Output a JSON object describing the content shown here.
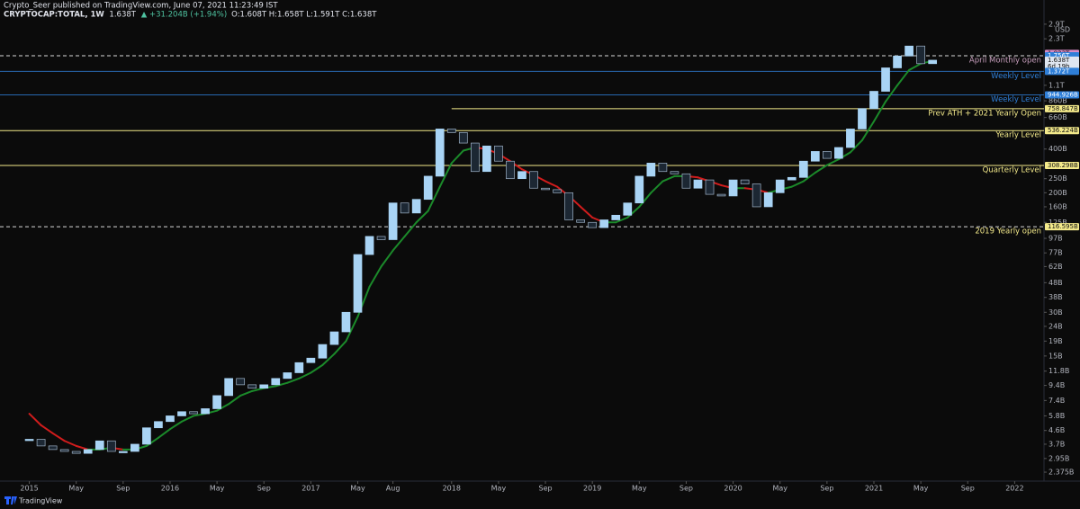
{
  "header": {
    "publisher": "Crypto_Seer published on TradingView.com, June 07, 2021 11:23:49 IST",
    "symbol": "CRYPTOCAP:TOTAL, 1W",
    "last": "1.638T",
    "change": "▲ +31.204B (+1.94%)",
    "ohlc": "O:1.608T H:1.658T L:1.591T C:1.638T",
    "currency": "USD",
    "brand": "TradingView"
  },
  "chart_data": {
    "type": "candlestick",
    "log_scale": true,
    "grid": false,
    "up_color": "#a9d4f5",
    "down_color": "#1c2733",
    "rise_color": "#1b8a2a",
    "fall_color": "#d01c1c",
    "xlim": [
      "2014-11",
      "2022-04"
    ],
    "ylim": [
      2060000000.0,
      3110000000000.0
    ],
    "x": [
      "2015-01",
      "2015-02",
      "2015-03",
      "2015-04",
      "2015-05",
      "2015-06",
      "2015-07",
      "2015-08",
      "2015-09",
      "2015-10",
      "2015-11",
      "2015-12",
      "2016-01",
      "2016-02",
      "2016-03",
      "2016-04",
      "2016-05",
      "2016-06",
      "2016-07",
      "2016-08",
      "2016-09",
      "2016-10",
      "2016-11",
      "2016-12",
      "2017-01",
      "2017-02",
      "2017-03",
      "2017-04",
      "2017-05",
      "2017-06",
      "2017-07",
      "2017-08",
      "2017-09",
      "2017-10",
      "2017-11",
      "2017-12",
      "2018-01",
      "2018-02",
      "2018-03",
      "2018-04",
      "2018-05",
      "2018-06",
      "2018-07",
      "2018-08",
      "2018-09",
      "2018-10",
      "2018-11",
      "2018-12",
      "2019-01",
      "2019-02",
      "2019-03",
      "2019-04",
      "2019-05",
      "2019-06",
      "2019-07",
      "2019-08",
      "2019-09",
      "2019-10",
      "2019-11",
      "2019-12",
      "2020-01",
      "2020-02",
      "2020-03",
      "2020-04",
      "2020-05",
      "2020-06",
      "2020-07",
      "2020-08",
      "2020-09",
      "2020-10",
      "2020-11",
      "2020-12",
      "2021-01",
      "2021-02",
      "2021-03",
      "2021-04",
      "2021-05",
      "2021-06"
    ],
    "close": [
      4000000000.0,
      3600000000.0,
      3400000000.0,
      3300000000.0,
      3200000000.0,
      3400000000.0,
      3900000000.0,
      3300000000.0,
      3300000000.0,
      3700000000.0,
      4800000000.0,
      5300000000.0,
      5800000000.0,
      6200000000.0,
      6000000000.0,
      6500000000.0,
      8000000000.0,
      10500000000.0,
      9500000000.0,
      9000000000.0,
      9500000000.0,
      10500000000.0,
      11500000000.0,
      13500000000.0,
      14500000000.0,
      18000000000.0,
      22000000000.0,
      30000000000.0,
      75000000000.0,
      100000000000.0,
      95000000000.0,
      170000000000.0,
      145000000000.0,
      180000000000.0,
      260000000000.0,
      550000000000.0,
      520000000000.0,
      440000000000.0,
      280000000000.0,
      420000000000.0,
      330000000000.0,
      250000000000.0,
      280000000000.0,
      215000000000.0,
      210000000000.0,
      200000000000.0,
      130000000000.0,
      125000000000.0,
      115000000000.0,
      130000000000.0,
      140000000000.0,
      170000000000.0,
      260000000000.0,
      320000000000.0,
      280000000000.0,
      270000000000.0,
      215000000000.0,
      245000000000.0,
      195000000000.0,
      190000000000.0,
      245000000000.0,
      230000000000.0,
      160000000000.0,
      200000000000.0,
      245000000000.0,
      255000000000.0,
      330000000000.0,
      385000000000.0,
      345000000000.0,
      410000000000.0,
      550000000000.0,
      760000000000.0,
      1000000000000.0,
      1450000000000.0,
      1750000000000.0,
      2050000000000.0,
      1550000000000.0,
      1638000000000.0
    ],
    "ma": [
      6000000000.0,
      5000000000.0,
      4400000000.0,
      3900000000.0,
      3600000000.0,
      3400000000.0,
      3400000000.0,
      3500000000.0,
      3400000000.0,
      3400000000.0,
      3600000000.0,
      4100000000.0,
      4700000000.0,
      5300000000.0,
      5800000000.0,
      6000000000.0,
      6300000000.0,
      7000000000.0,
      8000000000.0,
      8600000000.0,
      9000000000.0,
      9300000000.0,
      9800000000.0,
      10500000000.0,
      11500000000.0,
      13000000000.0,
      15500000000.0,
      19000000000.0,
      28000000000.0,
      45000000000.0,
      62000000000.0,
      80000000000.0,
      100000000000.0,
      125000000000.0,
      150000000000.0,
      220000000000.0,
      320000000000.0,
      390000000000.0,
      410000000000.0,
      400000000000.0,
      370000000000.0,
      330000000000.0,
      290000000000.0,
      265000000000.0,
      240000000000.0,
      220000000000.0,
      190000000000.0,
      160000000000.0,
      135000000000.0,
      125000000000.0,
      125000000000.0,
      135000000000.0,
      160000000000.0,
      200000000000.0,
      240000000000.0,
      260000000000.0,
      260000000000.0,
      255000000000.0,
      240000000000.0,
      225000000000.0,
      215000000000.0,
      215000000000.0,
      210000000000.0,
      200000000000.0,
      210000000000.0,
      220000000000.0,
      240000000000.0,
      275000000000.0,
      310000000000.0,
      340000000000.0,
      380000000000.0,
      460000000000.0,
      620000000000.0,
      850000000000.0,
      1100000000000.0,
      1400000000000.0,
      1550000000000.0,
      1620000000000.0
    ],
    "yticks": [
      {
        "value": 2900000000000.0,
        "label": "2.9T"
      },
      {
        "value": 2300000000000.0,
        "label": "2.3T"
      },
      {
        "value": 1100000000000.0,
        "label": "1.1T"
      },
      {
        "value": 860000000000.0,
        "label": "860B"
      },
      {
        "value": 660000000000.0,
        "label": "660B"
      },
      {
        "value": 400000000000.0,
        "label": "400B"
      },
      {
        "value": 250000000000.0,
        "label": "250B"
      },
      {
        "value": 200000000000.0,
        "label": "200B"
      },
      {
        "value": 160000000000.0,
        "label": "160B"
      },
      {
        "value": 125000000000.0,
        "label": "125B"
      },
      {
        "value": 97000000000.0,
        "label": "97B"
      },
      {
        "value": 77000000000.0,
        "label": "77B"
      },
      {
        "value": 62000000000.0,
        "label": "62B"
      },
      {
        "value": 48000000000.0,
        "label": "48B"
      },
      {
        "value": 38000000000.0,
        "label": "38B"
      },
      {
        "value": 30000000000.0,
        "label": "30B"
      },
      {
        "value": 24000000000.0,
        "label": "24B"
      },
      {
        "value": 19000000000.0,
        "label": "19B"
      },
      {
        "value": 15000000000.0,
        "label": "15B"
      },
      {
        "value": 11800000000.0,
        "label": "11.8B"
      },
      {
        "value": 9400000000.0,
        "label": "9.4B"
      },
      {
        "value": 7400000000.0,
        "label": "7.4B"
      },
      {
        "value": 5800000000.0,
        "label": "5.8B"
      },
      {
        "value": 4600000000.0,
        "label": "4.6B"
      },
      {
        "value": 3700000000.0,
        "label": "3.7B"
      },
      {
        "value": 2950000000.0,
        "label": "2.95B"
      },
      {
        "value": 2375000000.0,
        "label": "2.375B"
      }
    ],
    "xticks": [
      {
        "value": "2015-01",
        "label": "2015"
      },
      {
        "value": "2015-05",
        "label": "May"
      },
      {
        "value": "2015-09",
        "label": "Sep"
      },
      {
        "value": "2016-01",
        "label": "2016"
      },
      {
        "value": "2016-05",
        "label": "May"
      },
      {
        "value": "2016-09",
        "label": "Sep"
      },
      {
        "value": "2017-01",
        "label": "2017"
      },
      {
        "value": "2017-05",
        "label": "May"
      },
      {
        "value": "2017-08",
        "label": "Aug"
      },
      {
        "value": "2018-01",
        "label": "2018"
      },
      {
        "value": "2018-05",
        "label": "May"
      },
      {
        "value": "2018-09",
        "label": "Sep"
      },
      {
        "value": "2019-01",
        "label": "2019"
      },
      {
        "value": "2019-05",
        "label": "May"
      },
      {
        "value": "2019-09",
        "label": "Sep"
      },
      {
        "value": "2020-01",
        "label": "2020"
      },
      {
        "value": "2020-05",
        "label": "May"
      },
      {
        "value": "2020-09",
        "label": "Sep"
      },
      {
        "value": "2021-01",
        "label": "2021"
      },
      {
        "value": "2021-05",
        "label": "May"
      },
      {
        "value": "2021-09",
        "label": "Sep"
      },
      {
        "value": "2022-01",
        "label": "2022"
      }
    ],
    "levels": [
      {
        "value": 1823000000000.0,
        "value_label": "1.823T",
        "color": "#d98cc6",
        "style": "none"
      },
      {
        "value": 1756000000000.0,
        "value_label": "1.756T",
        "label": "April Monthly open",
        "color": "#c9a0bf",
        "tag_color": "#2f7fd8",
        "style": "dashed"
      },
      {
        "value": 1638000000000.0,
        "value_label": "1.638T",
        "countdown": "6d 19h",
        "color": "#dfe6f0",
        "style": "none"
      },
      {
        "value": 1372000000000.0,
        "value_label": "1.372T",
        "label": "Weekly Level",
        "color": "#2f7fd8",
        "style": "solid"
      },
      {
        "value": 944926000000.0,
        "value_label": "944.926B",
        "label": "Weekly Level",
        "color": "#2f7fd8",
        "style": "solid"
      },
      {
        "value": 758847000000.0,
        "value_label": "758.847B",
        "label": "Prev ATH + 2021 Yearly Open",
        "color": "#f3e98a",
        "style": "solid",
        "start": "2018-01"
      },
      {
        "value": 536224000000.0,
        "value_label": "536.224B",
        "label": "Yearly Level",
        "color": "#f3e98a",
        "style": "solid"
      },
      {
        "value": 308298000000.0,
        "value_label": "308.298B",
        "label": "Quarterly Level",
        "color": "#f3e98a",
        "style": "solid"
      },
      {
        "value": 116595000000.0,
        "value_label": "116.595B",
        "label": "2019 Yearly open",
        "color": "#f3e98a",
        "style": "dashed"
      }
    ]
  }
}
